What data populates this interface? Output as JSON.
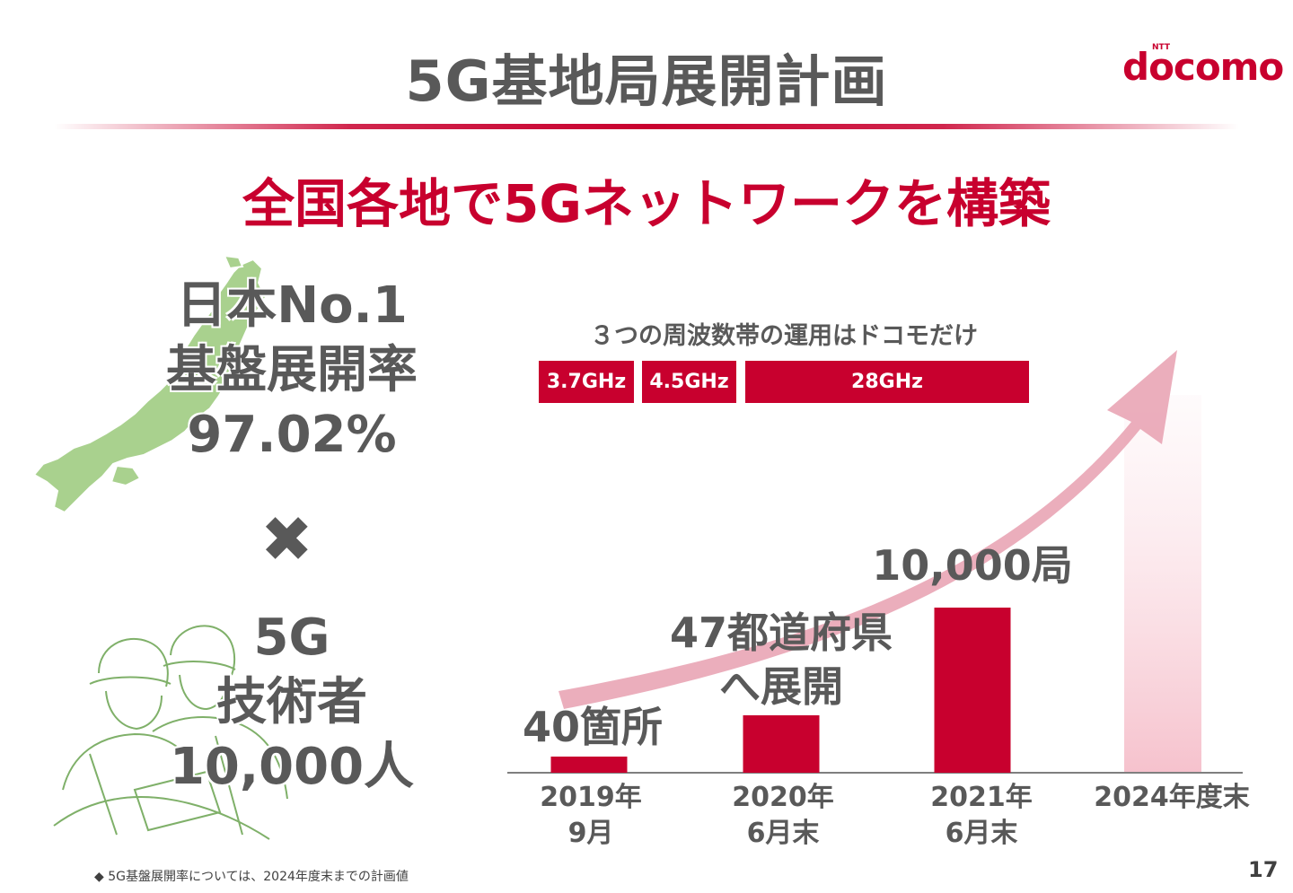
{
  "header": {
    "title": "5G基地局展開計画",
    "logo_text": "docomo",
    "logo_ntt": "NTT",
    "brand_color": "#c8002e"
  },
  "headline": "全国各地で5Gネットワークを構築",
  "left_panel": {
    "stat1_line1": "日本No.1",
    "stat1_line2": "基盤展開率",
    "stat1_value": "97.02%",
    "times_symbol": "✖",
    "stat2_line1": "5G",
    "stat2_line2": "技術者",
    "stat2_value": "10,000人",
    "map_icon": "japan-map-icon",
    "workers_icon": "engineers-illustration-icon"
  },
  "frequencies": {
    "caption": "３つの周波数帯の運用はドコモだけ",
    "bands": [
      "3.7GHz",
      "4.5GHz",
      "28GHz"
    ]
  },
  "chart_data": {
    "type": "bar",
    "categories": [
      "2019年 9月",
      "2020年 6月末",
      "2021年 6月末",
      "2024年度末"
    ],
    "values": [
      40,
      null,
      10000,
      null
    ],
    "bar_labels": [
      "40箇所",
      "47都道府県 へ展開",
      "10,000局",
      ""
    ],
    "x_labels": [
      [
        "2019年",
        "9月"
      ],
      [
        "2020年",
        "6月末"
      ],
      [
        "2021年",
        "6月末"
      ],
      [
        "2024年度末"
      ]
    ],
    "label_lines": [
      [
        "40箇所"
      ],
      [
        "47都道府県",
        "へ展開"
      ],
      [
        "10,000局"
      ]
    ],
    "bar_color": "#c8002e",
    "trend_arrow_color": "#e8a0b0"
  },
  "footer": {
    "footnote": "◆ 5G基盤展開率については、2024年度末までの計画値",
    "page_number": "17"
  }
}
